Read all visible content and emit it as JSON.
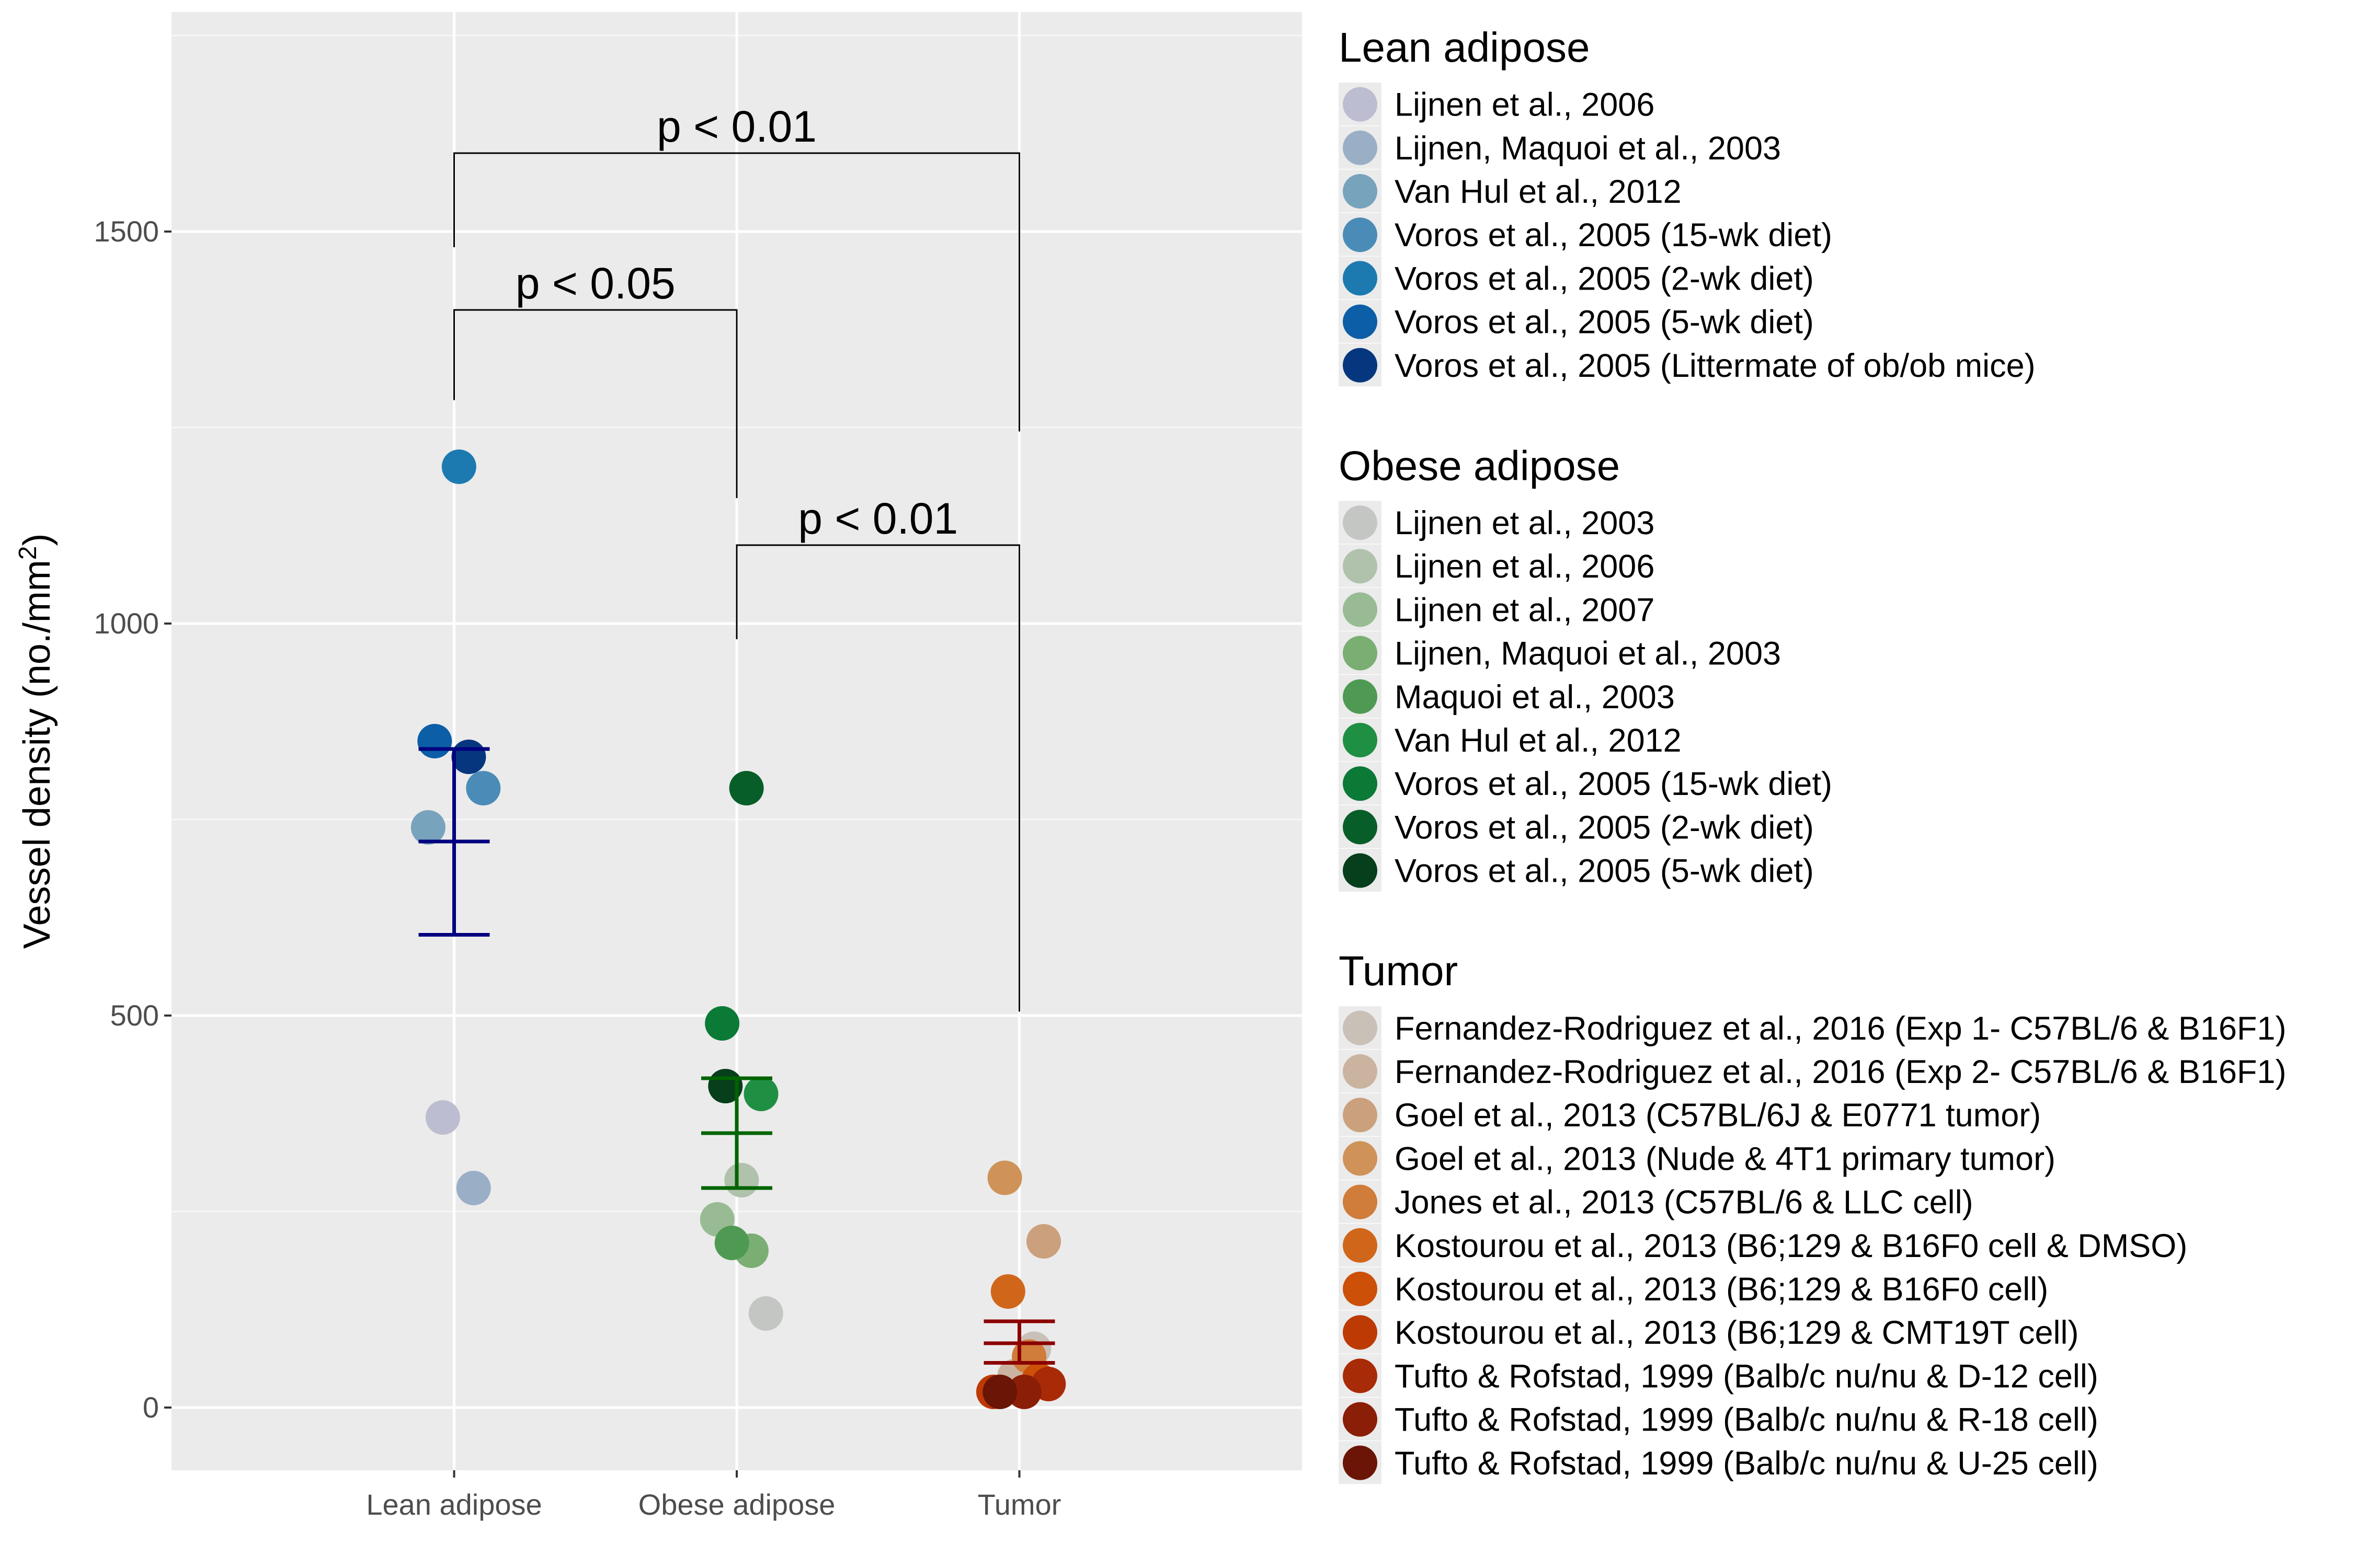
{
  "chart_data": {
    "type": "scatter",
    "ylabel": "Vessel density (no./mm²)",
    "ylim": [
      -80,
      1780
    ],
    "yticks": [
      0,
      500,
      1000,
      1500
    ],
    "grid": true,
    "legend_position": "right",
    "categories": [
      "Lean adipose",
      "Obese adipose",
      "Tumor"
    ],
    "groups": [
      {
        "name": "Lean adipose",
        "mean": 722,
        "error": [
          603,
          840
        ],
        "error_color": "#000080",
        "points": [
          {
            "study": "Lijnen et al., 2006",
            "value": 370,
            "color": "#bcbdd0"
          },
          {
            "study": "Lijnen, Maquoi et al., 2003",
            "value": 280,
            "color": "#9aafc6"
          },
          {
            "study": "Van Hul et al., 2012",
            "value": 740,
            "color": "#78a3bd"
          },
          {
            "study": "Voros et al., 2005 (15-wk diet)",
            "value": 790,
            "color": "#4a8cb7"
          },
          {
            "study": "Voros et al., 2005 (2-wk diet)",
            "value": 1200,
            "color": "#1c7ab0"
          },
          {
            "study": "Voros et al., 2005 (5-wk diet)",
            "value": 850,
            "color": "#0c5ea6"
          },
          {
            "study": "Voros et al., 2005 (Littermate of ob/ob mice)",
            "value": 830,
            "color": "#06377e"
          }
        ]
      },
      {
        "name": "Obese adipose",
        "mean": 350,
        "error": [
          280,
          420
        ],
        "error_color": "#006400",
        "points": [
          {
            "study": "Lijnen et al., 2003",
            "value": 120,
            "color": "#c3c6c3"
          },
          {
            "study": "Lijnen et al., 2006",
            "value": 290,
            "color": "#b0c1ac"
          },
          {
            "study": "Lijnen et al., 2007",
            "value": 240,
            "color": "#98bb93"
          },
          {
            "study": "Lijnen, Maquoi et al., 2003",
            "value": 200,
            "color": "#7aae73"
          },
          {
            "study": "Maquoi et al., 2003",
            "value": 210,
            "color": "#4f9a52"
          },
          {
            "study": "Van Hul et al., 2012",
            "value": 400,
            "color": "#1f8f43"
          },
          {
            "study": "Voros et al., 2005 (15-wk diet)",
            "value": 490,
            "color": "#0b7a37"
          },
          {
            "study": "Voros et al., 2005 (2-wk diet)",
            "value": 790,
            "color": "#085e28"
          },
          {
            "study": "Voros et al., 2005 (5-wk diet)",
            "value": 410,
            "color": "#073e1b"
          }
        ]
      },
      {
        "name": "Tumor",
        "mean": 82,
        "error": [
          57,
          110
        ],
        "error_color": "#8b0000",
        "points": [
          {
            "study": "Fernandez-Rodriguez et al., 2016 (Exp 1- C57BL/6 & B16F1)",
            "value": 75,
            "color": "#c9c0b8"
          },
          {
            "study": "Fernandez-Rodriguez et al., 2016 (Exp 2- C57BL/6 & B16F1)",
            "value": 40,
            "color": "#cbb49f"
          },
          {
            "study": "Goel et al., 2013 (C57BL/6J & E0771 tumor)",
            "value": 212,
            "color": "#cba07c"
          },
          {
            "study": "Goel et al., 2013 (Nude & 4T1 primary tumor)",
            "value": 293,
            "color": "#cf9259"
          },
          {
            "study": "Jones et al., 2013 (C57BL/6 & LLC cell)",
            "value": 65,
            "color": "#d07c3a"
          },
          {
            "study": "Kostourou et al., 2013 (B6;129 & B16F0 cell & DMSO)",
            "value": 148,
            "color": "#d0661a"
          },
          {
            "study": "Kostourou et al., 2013 (B6;129 & B16F0 cell)",
            "value": 35,
            "color": "#cc5008"
          },
          {
            "study": "Kostourou et al., 2013 (B6;129 & CMT19T cell)",
            "value": 20,
            "color": "#bd3a05"
          },
          {
            "study": "Tufto & Rofstad, 1999 (Balb/c nu/nu & D-12 cell)",
            "value": 30,
            "color": "#a92a07"
          },
          {
            "study": "Tufto & Rofstad, 1999 (Balb/c nu/nu & R-18 cell)",
            "value": 20,
            "color": "#8b1e07"
          },
          {
            "study": "Tufto & Rofstad, 1999 (Balb/c nu/nu & U-25 cell)",
            "value": 20,
            "color": "#6a1505"
          }
        ]
      }
    ],
    "comparisons": [
      {
        "from": "Lean adipose",
        "to": "Tumor",
        "label": "p < 0.01",
        "bracket_y": 1600,
        "from_end": 1480,
        "to_end": 1245
      },
      {
        "from": "Lean adipose",
        "to": "Obese adipose",
        "label": "p < 0.05",
        "bracket_y": 1400,
        "from_end": 1285,
        "to_end": 1160
      },
      {
        "from": "Obese adipose",
        "to": "Tumor",
        "label": "p < 0.01",
        "bracket_y": 1100,
        "from_end": 980,
        "to_end": 505
      }
    ]
  }
}
